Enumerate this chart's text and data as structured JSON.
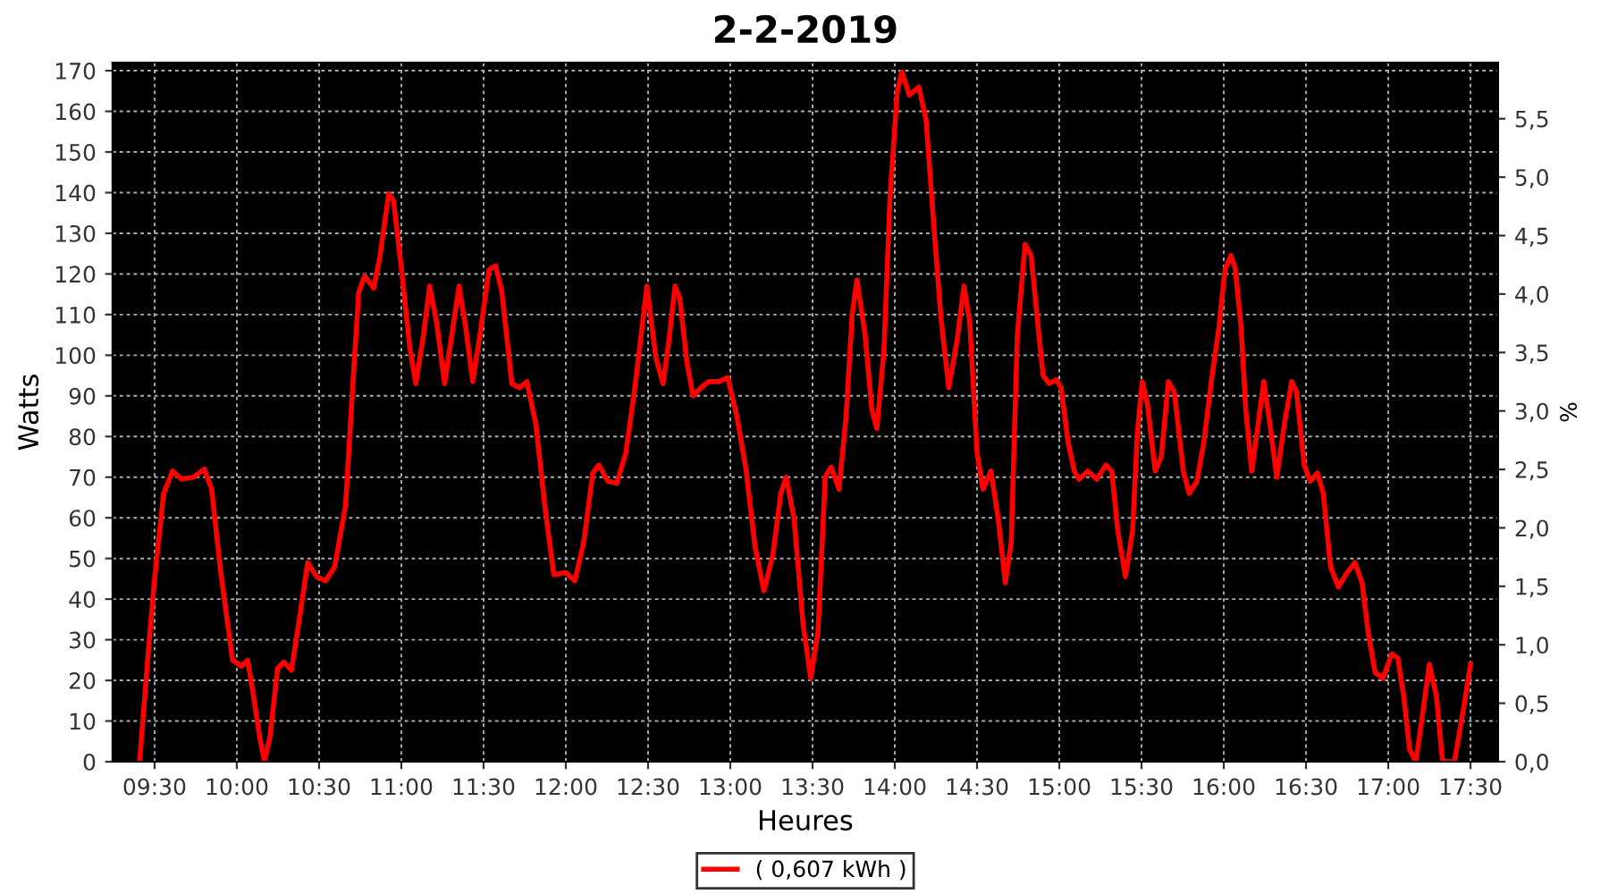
{
  "chart_data": {
    "type": "line",
    "title": "2-2-2019",
    "xlabel": "Heures",
    "ylabel": "Watts",
    "y2label": "%",
    "series": [
      {
        "name": "( 0,607 kWh )",
        "color": "#ff0000",
        "x": [
          9.409,
          9.464,
          9.5,
          9.555,
          9.609,
          9.664,
          9.737,
          9.803,
          9.847,
          9.901,
          9.974,
          10.029,
          10.066,
          10.102,
          10.139,
          10.168,
          10.201,
          10.248,
          10.285,
          10.332,
          10.376,
          10.431,
          10.485,
          10.54,
          10.595,
          10.661,
          10.704,
          10.741,
          10.777,
          10.832,
          10.869,
          10.923,
          10.953,
          11.004,
          11.051,
          11.088,
          11.135,
          11.172,
          11.215,
          11.263,
          11.307,
          11.351,
          11.391,
          11.434,
          11.478,
          11.533,
          11.573,
          11.61,
          11.672,
          11.719,
          11.763,
          11.818,
          11.872,
          11.927,
          12.0,
          12.055,
          12.109,
          12.164,
          12.201,
          12.255,
          12.31,
          12.365,
          12.42,
          12.493,
          12.547,
          12.591,
          12.628,
          12.664,
          12.693,
          12.737,
          12.774,
          12.821,
          12.869,
          12.931,
          12.985,
          13.04,
          13.095,
          13.15,
          13.204,
          13.259,
          13.307,
          13.339,
          13.387,
          13.442,
          13.489,
          13.533,
          13.577,
          13.613,
          13.661,
          13.704,
          13.741,
          13.77,
          13.818,
          13.861,
          13.891,
          13.934,
          13.971,
          14.015,
          14.044,
          14.088,
          14.146,
          14.19,
          14.237,
          14.281,
          14.328,
          14.38,
          14.42,
          14.456,
          14.5,
          14.536,
          14.584,
          14.628,
          14.672,
          14.708,
          14.745,
          14.792,
          14.829,
          14.876,
          14.902,
          14.938,
          14.982,
          15.011,
          15.054,
          15.091,
          15.12,
          15.174,
          15.228,
          15.283,
          15.319,
          15.355,
          15.402,
          15.446,
          15.475,
          15.504,
          15.536,
          15.583,
          15.62,
          15.663,
          15.699,
          15.754,
          15.79,
          15.837,
          15.88,
          15.924,
          15.971,
          16.007,
          16.043,
          16.069,
          16.105,
          16.134,
          16.17,
          16.207,
          16.243,
          16.279,
          16.322,
          16.37,
          16.413,
          16.442,
          16.489,
          16.525,
          16.569,
          16.605,
          16.649,
          16.696,
          16.75,
          16.797,
          16.841,
          16.877,
          16.92,
          16.967,
          17.022,
          17.058,
          17.094,
          17.13,
          17.167,
          17.203,
          17.25,
          17.293,
          17.33,
          17.402,
          17.457,
          17.5
        ],
        "values": [
          0,
          28,
          45,
          66,
          71.5,
          69.5,
          70,
          72,
          67,
          47,
          25,
          23.5,
          25,
          16,
          6,
          0,
          6,
          23,
          24.5,
          22.5,
          34,
          49,
          45.5,
          44.5,
          48,
          63,
          92,
          115.5,
          119.5,
          116.5,
          124,
          139.7,
          138,
          120,
          102,
          93,
          105,
          117,
          108,
          93,
          105,
          117,
          107,
          93.5,
          105,
          121,
          122,
          116,
          93,
          92,
          93.5,
          83,
          63,
          46,
          46.5,
          44.5,
          54,
          71,
          73,
          69,
          68.5,
          76,
          92,
          117,
          99.5,
          93,
          104,
          117,
          114,
          98,
          90,
          92,
          93.5,
          93.5,
          94.5,
          85,
          72,
          53,
          42,
          51,
          66,
          70,
          60,
          34,
          20.5,
          32,
          70,
          72.5,
          67,
          85,
          110,
          118.5,
          105.5,
          86.5,
          82,
          101,
          139,
          165,
          169.7,
          164,
          166,
          158,
          132,
          109,
          92,
          104,
          117,
          108,
          76,
          67,
          71.5,
          60,
          44,
          54,
          105,
          127.3,
          124.5,
          105,
          95,
          93,
          94,
          92,
          78.5,
          71.5,
          69.5,
          71.5,
          69.5,
          73,
          71.5,
          57,
          45.5,
          57,
          81,
          93.5,
          88,
          71.5,
          75,
          93.5,
          91,
          71.5,
          66,
          69,
          79,
          93.5,
          107,
          121,
          124.5,
          121.5,
          107,
          86.5,
          71.5,
          82.5,
          93.5,
          83.5,
          70,
          83.5,
          93.5,
          91,
          73,
          69,
          71,
          66,
          48,
          43,
          46.5,
          49,
          44,
          32,
          22,
          20.5,
          26.5,
          25.5,
          16,
          3,
          0,
          10,
          24,
          16,
          0,
          0,
          13,
          24
        ]
      }
    ],
    "xlim": [
      9.245,
      17.667
    ],
    "xticks": [
      {
        "value": 9.5,
        "label": "09:30"
      },
      {
        "value": 10,
        "label": "10:00"
      },
      {
        "value": 10.5,
        "label": "10:30"
      },
      {
        "value": 11,
        "label": "11:00"
      },
      {
        "value": 11.5,
        "label": "11:30"
      },
      {
        "value": 12,
        "label": "12:00"
      },
      {
        "value": 12.5,
        "label": "12:30"
      },
      {
        "value": 13,
        "label": "13:00"
      },
      {
        "value": 13.5,
        "label": "13:30"
      },
      {
        "value": 14,
        "label": "14:00"
      },
      {
        "value": 14.5,
        "label": "14:30"
      },
      {
        "value": 15,
        "label": "15:00"
      },
      {
        "value": 15.5,
        "label": "15:30"
      },
      {
        "value": 16,
        "label": "16:00"
      },
      {
        "value": 16.5,
        "label": "16:30"
      },
      {
        "value": 17,
        "label": "17:00"
      },
      {
        "value": 17.5,
        "label": "17:30"
      }
    ],
    "ylim": [
      0,
      172
    ],
    "yticks": [
      0,
      10,
      20,
      30,
      40,
      50,
      60,
      70,
      80,
      90,
      100,
      110,
      120,
      130,
      140,
      150,
      160,
      170
    ],
    "y2lim": [
      0,
      5.98
    ],
    "y2ticks": [
      {
        "value": 0,
        "label": "0,0"
      },
      {
        "value": 0.5,
        "label": "0,5"
      },
      {
        "value": 1,
        "label": "1,0"
      },
      {
        "value": 1.5,
        "label": "1,5"
      },
      {
        "value": 2,
        "label": "2,0"
      },
      {
        "value": 2.5,
        "label": "2,5"
      },
      {
        "value": 3,
        "label": "3,0"
      },
      {
        "value": 3.5,
        "label": "3,5"
      },
      {
        "value": 4,
        "label": "4,0"
      },
      {
        "value": 4.5,
        "label": "4,5"
      },
      {
        "value": 5,
        "label": "5,0"
      },
      {
        "value": 5.5,
        "label": "5,5"
      }
    ],
    "grid": true,
    "legend": "bottom",
    "marker": "none",
    "line_style": "solid"
  }
}
